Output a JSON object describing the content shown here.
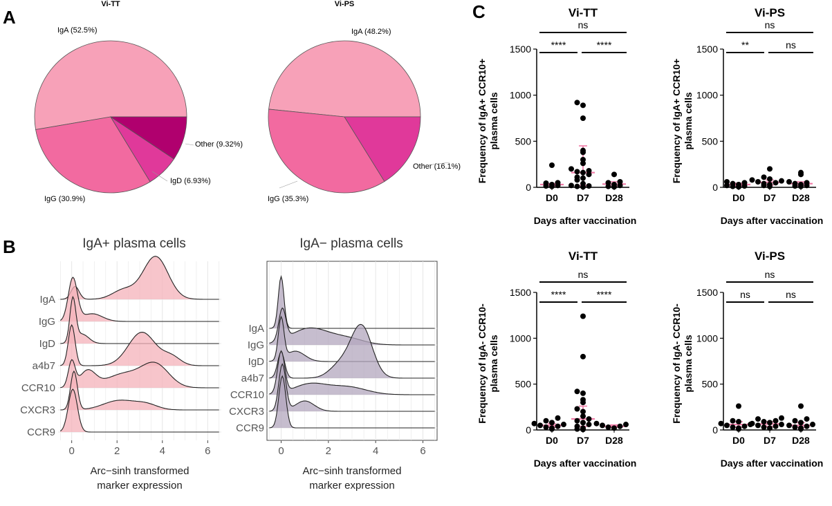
{
  "panel_labels": {
    "a": "A",
    "b": "B",
    "c": "C"
  },
  "colors": {
    "pie": [
      "#f7a1b8",
      "#f26aa0",
      "#e0399a",
      "#b0006e"
    ],
    "pie_edge": "#555555",
    "ridge_pos": "#f4b1ba",
    "ridge_neg": "#b3a7bd",
    "median_bar": "#f07aa6",
    "point": "#000000",
    "grid": "#e6e6e6"
  },
  "chart_data": [
    {
      "id": "pie-vitt",
      "type": "pie",
      "title": "Vi-TT",
      "slices": [
        {
          "label": "IgA (52.5%)",
          "value": 52.5
        },
        {
          "label": "IgG (30.9%)",
          "value": 30.9
        },
        {
          "label": "IgD (6.93%)",
          "value": 6.93
        },
        {
          "label": "Other (9.32%)",
          "value": 9.32
        }
      ]
    },
    {
      "id": "pie-vips",
      "type": "pie",
      "title": "Vi-PS",
      "slices": [
        {
          "label": "IgA (48.2%)",
          "value": 48.2
        },
        {
          "label": "IgG (35.3%)",
          "value": 35.3
        },
        {
          "label": "Other (16.1%)",
          "value": 16.1
        }
      ]
    },
    {
      "id": "ridge-pos",
      "type": "area",
      "title": "IgA+ plasma cells",
      "xlabel": "Arc−sinh transformed\nmarker expression",
      "xlim": [
        -0.6,
        6.6
      ],
      "xticks": [
        0,
        2,
        4,
        6
      ],
      "series": [
        {
          "name": "IgA",
          "peaks": [
            [
              0.15,
              0.18,
              0.3
            ],
            [
              3.7,
              0.55,
              1.0
            ],
            [
              2.3,
              0.5,
              0.22
            ]
          ]
        },
        {
          "name": "IgG",
          "peaks": [
            [
              0.05,
              0.2,
              1.0
            ],
            [
              0.9,
              0.45,
              0.18
            ]
          ]
        },
        {
          "name": "IgD",
          "peaks": [
            [
              0.05,
              0.13,
              1.0
            ],
            [
              0.45,
              0.3,
              0.22
            ]
          ]
        },
        {
          "name": "a4b7",
          "peaks": [
            [
              0.0,
              0.15,
              0.95
            ],
            [
              3.1,
              0.6,
              0.78
            ],
            [
              4.4,
              0.4,
              0.2
            ]
          ]
        },
        {
          "name": "CCR10",
          "peaks": [
            [
              0.0,
              0.15,
              0.6
            ],
            [
              0.7,
              0.35,
              0.38
            ],
            [
              2.3,
              0.8,
              0.32
            ],
            [
              3.7,
              0.6,
              0.52
            ]
          ]
        },
        {
          "name": "CXCR3",
          "peaks": [
            [
              0.1,
              0.15,
              0.9
            ],
            [
              2.1,
              0.7,
              0.22
            ],
            [
              3.3,
              0.5,
              0.12
            ]
          ]
        },
        {
          "name": "CCR9",
          "peaks": [
            [
              0.05,
              0.2,
              1.0
            ]
          ]
        }
      ]
    },
    {
      "id": "ridge-neg",
      "type": "area",
      "title": "IgA− plasma cells",
      "xlabel": "Arc−sinh transformed\nmarker expression",
      "xlim": [
        -0.6,
        6.6
      ],
      "xticks": [
        0,
        2,
        4,
        6
      ],
      "series": [
        {
          "name": "IgA",
          "peaks": [
            [
              0.0,
              0.12,
              1.0
            ]
          ]
        },
        {
          "name": "IgG",
          "peaks": [
            [
              0.05,
              0.15,
              0.6
            ],
            [
              1.2,
              0.8,
              0.32
            ],
            [
              2.8,
              0.7,
              0.12
            ]
          ]
        },
        {
          "name": "IgD",
          "peaks": [
            [
              0.0,
              0.12,
              0.8
            ],
            [
              0.6,
              0.4,
              0.2
            ]
          ]
        },
        {
          "name": "a4b7",
          "peaks": [
            [
              0.0,
              0.15,
              0.5
            ],
            [
              3.4,
              0.45,
              1.0
            ],
            [
              2.5,
              0.45,
              0.25
            ]
          ]
        },
        {
          "name": "CCR10",
          "peaks": [
            [
              0.0,
              0.15,
              0.8
            ],
            [
              1.2,
              0.7,
              0.2
            ],
            [
              2.8,
              0.8,
              0.15
            ]
          ]
        },
        {
          "name": "CXCR3",
          "peaks": [
            [
              0.05,
              0.15,
              0.9
            ],
            [
              1.0,
              0.4,
              0.2
            ]
          ]
        },
        {
          "name": "CCR9",
          "peaks": [
            [
              0.05,
              0.15,
              1.0
            ]
          ]
        }
      ]
    },
    {
      "id": "scatter-vitt-pos",
      "type": "scatter",
      "title": "Vi-TT",
      "ylabel": "Frequency of IgA+ CCR10+\nplasma cells",
      "xlabel": "Days after vaccination",
      "categories": [
        "D0",
        "D7",
        "D28"
      ],
      "ylim": [
        0,
        1500
      ],
      "yticks": [
        0,
        500,
        1000,
        1500
      ],
      "points": [
        [
          10,
          15,
          20,
          30,
          45,
          50,
          240
        ],
        [
          5,
          10,
          15,
          20,
          40,
          80,
          100,
          110,
          140,
          160,
          170,
          180,
          200,
          260,
          300,
          380,
          400,
          750,
          890,
          920
        ],
        [
          5,
          10,
          20,
          30,
          50,
          60,
          140
        ]
      ],
      "medians": [
        30,
        160,
        35
      ],
      "iqr": [
        [
          15,
          40
        ],
        [
          20,
          450
        ],
        [
          15,
          60
        ]
      ],
      "comparisons": [
        {
          "from": 0,
          "to": 2,
          "label": "ns",
          "level": 0
        },
        {
          "from": 0,
          "to": 1,
          "label": "****",
          "level": 1
        },
        {
          "from": 1,
          "to": 2,
          "label": "****",
          "level": 1
        }
      ]
    },
    {
      "id": "scatter-vips-pos",
      "type": "scatter",
      "title": "Vi-PS",
      "ylabel": "Frequency of IgA+ CCR10+\nplasma cells",
      "xlabel": "Days after vaccination",
      "categories": [
        "D0",
        "D7",
        "D28"
      ],
      "ylim": [
        0,
        1500
      ],
      "yticks": [
        0,
        500,
        1000,
        1500
      ],
      "points": [
        [
          5,
          10,
          15,
          20,
          30,
          40,
          50,
          60
        ],
        [
          10,
          20,
          30,
          40,
          50,
          60,
          70,
          80,
          90,
          110,
          200
        ],
        [
          10,
          15,
          20,
          30,
          40,
          50,
          60,
          140,
          160
        ]
      ],
      "medians": [
        30,
        55,
        40
      ],
      "iqr": [
        [
          15,
          45
        ],
        [
          25,
          80
        ],
        [
          20,
          60
        ]
      ],
      "comparisons": [
        {
          "from": 0,
          "to": 2,
          "label": "ns",
          "level": 0
        },
        {
          "from": 0,
          "to": 1,
          "label": "**",
          "level": 1
        },
        {
          "from": 1,
          "to": 2,
          "label": "ns",
          "level": 1
        }
      ]
    },
    {
      "id": "scatter-vitt-neg",
      "type": "scatter",
      "title": "Vi-TT",
      "ylabel": "Frequency of IgA- CCR10-\nplasma cells",
      "xlabel": "Days after vaccination",
      "categories": [
        "D0",
        "D7",
        "D28"
      ],
      "ylim": [
        0,
        1500
      ],
      "yticks": [
        0,
        500,
        1000,
        1500
      ],
      "points": [
        [
          10,
          20,
          30,
          40,
          50,
          60,
          70,
          80,
          100,
          130
        ],
        [
          5,
          10,
          20,
          40,
          60,
          80,
          100,
          120,
          150,
          200,
          230,
          300,
          330,
          400,
          420,
          800,
          1240
        ],
        [
          20,
          30,
          40,
          50,
          60,
          70
        ]
      ],
      "medians": [
        50,
        120,
        40
      ],
      "iqr": [
        [
          30,
          70
        ],
        [
          40,
          260
        ],
        [
          30,
          55
        ]
      ],
      "comparisons": [
        {
          "from": 0,
          "to": 2,
          "label": "ns",
          "level": 0
        },
        {
          "from": 0,
          "to": 1,
          "label": "****",
          "level": 1
        },
        {
          "from": 1,
          "to": 2,
          "label": "****",
          "level": 1
        }
      ]
    },
    {
      "id": "scatter-vips-neg",
      "type": "scatter",
      "title": "Vi-PS",
      "ylabel": "Frequency of IgA- CCR10-\nplasma cells",
      "xlabel": "Days after vaccination",
      "categories": [
        "D0",
        "D7",
        "D28"
      ],
      "ylim": [
        0,
        1500
      ],
      "yticks": [
        0,
        500,
        1000,
        1500
      ],
      "points": [
        [
          10,
          20,
          30,
          40,
          50,
          60,
          70,
          90,
          100,
          260
        ],
        [
          20,
          30,
          40,
          50,
          60,
          70,
          80,
          90,
          100,
          120,
          130
        ],
        [
          10,
          20,
          30,
          40,
          50,
          60,
          80,
          100,
          120,
          260
        ]
      ],
      "medians": [
        60,
        65,
        50
      ],
      "iqr": [
        [
          30,
          90
        ],
        [
          40,
          90
        ],
        [
          25,
          80
        ]
      ],
      "comparisons": [
        {
          "from": 0,
          "to": 2,
          "label": "ns",
          "level": 0
        },
        {
          "from": 0,
          "to": 1,
          "label": "ns",
          "level": 1
        },
        {
          "from": 1,
          "to": 2,
          "label": "ns",
          "level": 1
        }
      ]
    }
  ]
}
